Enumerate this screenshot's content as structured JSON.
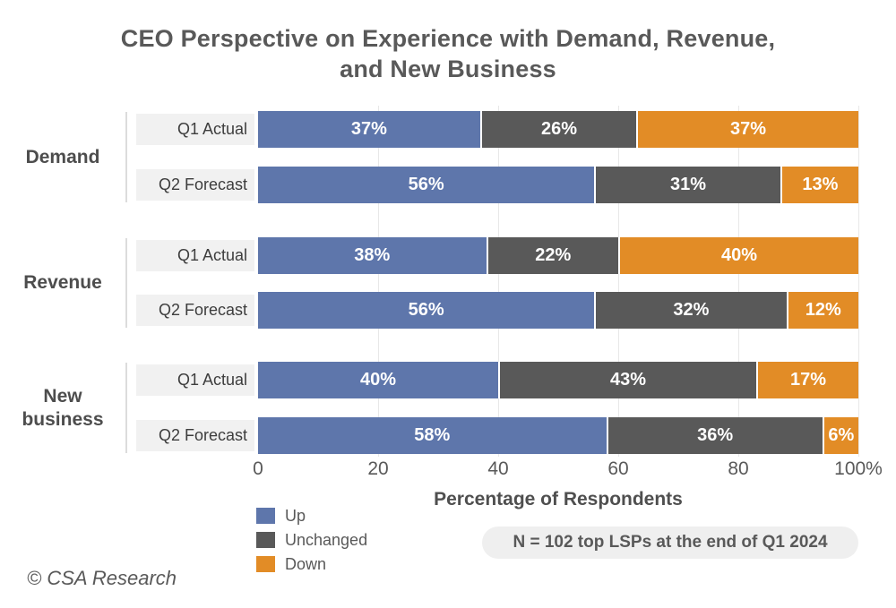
{
  "title": "CEO Perspective on Experience with Demand, Revenue,\nand New Business",
  "chart_data": {
    "type": "bar",
    "orientation": "horizontal",
    "stacked": true,
    "group_labels": [
      "Demand",
      "Revenue",
      "New business"
    ],
    "categories": [
      "Q1 Actual",
      "Q2 Forecast",
      "Q1 Actual",
      "Q2 Forecast",
      "Q1 Actual",
      "Q2 Forecast"
    ],
    "series": [
      {
        "name": "Up",
        "color": "#5E76AB",
        "values": [
          37,
          56,
          38,
          56,
          40,
          58
        ]
      },
      {
        "name": "Unchanged",
        "color": "#595959",
        "values": [
          26,
          31,
          22,
          32,
          43,
          36
        ]
      },
      {
        "name": "Down",
        "color": "#E28C26",
        "values": [
          37,
          13,
          40,
          12,
          17,
          6
        ]
      }
    ],
    "value_label_suffix": "%",
    "xlabel": "Percentage of Respondents",
    "x_ticks": [
      "0",
      "20",
      "40",
      "60",
      "80",
      "100%"
    ],
    "xlim": [
      0,
      100
    ],
    "grid": true,
    "legend_position": "bottom-left"
  },
  "note": "N = 102 top LSPs at the end of Q1 2024",
  "footer": "© CSA Research",
  "colors": {
    "text": "#595959",
    "row_label_bg": "#F1F1F1",
    "note_bg": "#EFEFEF",
    "gridline": "#E8E8E8"
  }
}
